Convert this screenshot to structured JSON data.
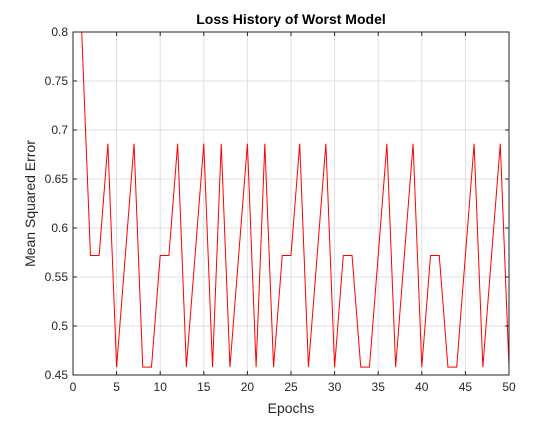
{
  "chart_data": {
    "type": "line",
    "title": "Loss History of Worst Model",
    "xlabel": "Epochs",
    "ylabel": "Mean Squared Error",
    "xlim": [
      0,
      50
    ],
    "ylim": [
      0.45,
      0.8
    ],
    "xticks": [
      0,
      5,
      10,
      15,
      20,
      25,
      30,
      35,
      40,
      45,
      50
    ],
    "xtick_labels": [
      "0",
      "5",
      "10",
      "15",
      "20",
      "25",
      "30",
      "35",
      "40",
      "45",
      "50"
    ],
    "yticks": [
      0.45,
      0.5,
      0.55,
      0.6,
      0.65,
      0.7,
      0.75,
      0.8
    ],
    "ytick_labels": [
      "0.45",
      "0.5",
      "0.55",
      "0.6",
      "0.65",
      "0.7",
      "0.75",
      "0.8"
    ],
    "grid": true,
    "legend": false,
    "series": [
      {
        "color": "#ff0000",
        "x": [
          1,
          2,
          3,
          4,
          5,
          6,
          7,
          8,
          9,
          10,
          11,
          12,
          13,
          14,
          15,
          16,
          17,
          18,
          19,
          20,
          21,
          22,
          23,
          24,
          25,
          26,
          27,
          28,
          29,
          30,
          31,
          32,
          33,
          34,
          35,
          36,
          37,
          38,
          39,
          40,
          41,
          42,
          43,
          44,
          45,
          46,
          47,
          48,
          49,
          50
        ],
        "y": [
          0.8,
          0.572,
          0.572,
          0.686,
          0.458,
          0.572,
          0.686,
          0.458,
          0.458,
          0.572,
          0.572,
          0.686,
          0.458,
          0.572,
          0.686,
          0.458,
          0.686,
          0.458,
          0.572,
          0.686,
          0.458,
          0.686,
          0.458,
          0.572,
          0.572,
          0.686,
          0.458,
          0.572,
          0.686,
          0.458,
          0.572,
          0.572,
          0.458,
          0.458,
          0.572,
          0.686,
          0.458,
          0.572,
          0.686,
          0.458,
          0.572,
          0.572,
          0.458,
          0.458,
          0.572,
          0.686,
          0.458,
          0.572,
          0.686,
          0.458
        ]
      }
    ]
  }
}
